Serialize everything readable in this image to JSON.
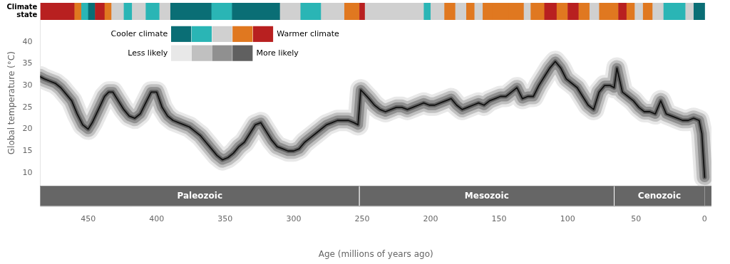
{
  "chart_data": {
    "type": "line",
    "xlabel": "Age (millions of years ago)",
    "ylabel": "Global temperature (°C)",
    "xlim": [
      485,
      -5
    ],
    "ylim": [
      7,
      45
    ],
    "xticks": [
      450,
      400,
      350,
      300,
      250,
      200,
      150,
      100,
      50,
      0
    ],
    "yticks": [
      10,
      15,
      20,
      25,
      30,
      35,
      40
    ],
    "grid": false,
    "color": "#111111",
    "x": [
      485,
      482,
      478,
      474,
      470,
      466,
      462,
      458,
      454,
      450,
      447,
      444,
      441,
      438,
      435,
      432,
      428,
      424,
      420,
      416,
      412,
      408,
      404,
      400,
      396,
      392,
      388,
      384,
      380,
      376,
      372,
      368,
      364,
      360,
      356,
      352,
      348,
      344,
      340,
      336,
      332,
      328,
      324,
      320,
      316,
      312,
      308,
      304,
      300,
      296,
      292,
      288,
      284,
      280,
      276,
      272,
      268,
      264,
      260,
      256,
      253,
      251,
      248,
      245,
      241,
      237,
      233,
      229,
      225,
      221,
      217,
      213,
      209,
      205,
      201,
      197,
      193,
      189,
      185,
      181,
      177,
      173,
      169,
      165,
      161,
      157,
      153,
      149,
      145,
      141,
      137,
      133,
      129,
      125,
      121,
      117,
      113,
      109,
      105,
      101,
      97,
      93,
      89,
      85,
      81,
      77,
      73,
      69,
      66,
      64,
      60,
      56,
      52,
      48,
      44,
      40,
      36,
      32,
      28,
      24,
      20,
      16,
      12,
      8,
      4,
      2,
      1,
      0
    ],
    "values": [
      32.0,
      31.5,
      31.0,
      30.5,
      29.5,
      28.0,
      26.5,
      23.5,
      21.0,
      20.0,
      21.5,
      23.5,
      25.5,
      27.5,
      28.5,
      28.5,
      26.5,
      24.5,
      23.0,
      22.5,
      23.5,
      26.0,
      28.5,
      28.5,
      25.0,
      23.0,
      22.0,
      21.5,
      21.0,
      20.5,
      19.5,
      18.5,
      17.0,
      15.5,
      14.0,
      13.0,
      13.5,
      14.5,
      16.0,
      17.0,
      19.0,
      21.0,
      21.5,
      19.5,
      17.5,
      16.0,
      15.5,
      15.0,
      15.0,
      15.5,
      17.0,
      18.0,
      19.0,
      20.0,
      21.0,
      21.5,
      22.0,
      22.0,
      22.0,
      21.5,
      21.0,
      29.0,
      28.0,
      27.0,
      25.5,
      24.5,
      24.0,
      24.5,
      25.0,
      25.0,
      24.5,
      25.0,
      25.5,
      26.0,
      25.5,
      25.5,
      26.0,
      26.5,
      27.0,
      25.5,
      24.5,
      25.0,
      25.5,
      26.0,
      25.5,
      26.5,
      27.0,
      27.5,
      27.5,
      28.5,
      29.5,
      27.0,
      27.5,
      27.5,
      30.0,
      32.0,
      34.0,
      35.5,
      34.0,
      31.5,
      30.5,
      29.5,
      27.5,
      25.5,
      24.5,
      28.5,
      30.0,
      30.0,
      29.5,
      34.0,
      28.5,
      27.5,
      26.5,
      25.0,
      24.0,
      24.0,
      23.5,
      26.5,
      23.5,
      23.0,
      22.5,
      22.0,
      22.0,
      22.5,
      22.0,
      19.0,
      14.0,
      9.0
    ],
    "climate_state": {
      "label": "Climate\nstate",
      "segments": [
        {
          "start": 485,
          "end": 460,
          "color": "#b82020"
        },
        {
          "start": 460,
          "end": 455,
          "color": "#e07820"
        },
        {
          "start": 455,
          "end": 450,
          "color": "#2ab5b5"
        },
        {
          "start": 450,
          "end": 445,
          "color": "#0a6e75"
        },
        {
          "start": 445,
          "end": 438,
          "color": "#b82020"
        },
        {
          "start": 438,
          "end": 433,
          "color": "#e07820"
        },
        {
          "start": 433,
          "end": 424,
          "color": "#d0d0d0"
        },
        {
          "start": 424,
          "end": 418,
          "color": "#2ab5b5"
        },
        {
          "start": 418,
          "end": 408,
          "color": "#d0d0d0"
        },
        {
          "start": 408,
          "end": 398,
          "color": "#2ab5b5"
        },
        {
          "start": 398,
          "end": 390,
          "color": "#d0d0d0"
        },
        {
          "start": 390,
          "end": 360,
          "color": "#0a6e75"
        },
        {
          "start": 360,
          "end": 345,
          "color": "#2ab5b5"
        },
        {
          "start": 345,
          "end": 310,
          "color": "#0a6e75"
        },
        {
          "start": 310,
          "end": 295,
          "color": "#d0d0d0"
        },
        {
          "start": 295,
          "end": 280,
          "color": "#2ab5b5"
        },
        {
          "start": 280,
          "end": 263,
          "color": "#d0d0d0"
        },
        {
          "start": 263,
          "end": 252,
          "color": "#e07820"
        },
        {
          "start": 252,
          "end": 248,
          "color": "#b82020"
        },
        {
          "start": 248,
          "end": 205,
          "color": "#d0d0d0"
        },
        {
          "start": 205,
          "end": 200,
          "color": "#2ab5b5"
        },
        {
          "start": 200,
          "end": 190,
          "color": "#d0d0d0"
        },
        {
          "start": 190,
          "end": 182,
          "color": "#e07820"
        },
        {
          "start": 182,
          "end": 174,
          "color": "#d0d0d0"
        },
        {
          "start": 174,
          "end": 168,
          "color": "#e07820"
        },
        {
          "start": 168,
          "end": 162,
          "color": "#d0d0d0"
        },
        {
          "start": 162,
          "end": 155,
          "color": "#e07820"
        },
        {
          "start": 155,
          "end": 143,
          "color": "#e07820"
        },
        {
          "start": 143,
          "end": 132,
          "color": "#e07820"
        },
        {
          "start": 132,
          "end": 127,
          "color": "#d0d0d0"
        },
        {
          "start": 127,
          "end": 117,
          "color": "#e07820"
        },
        {
          "start": 117,
          "end": 108,
          "color": "#b82020"
        },
        {
          "start": 108,
          "end": 100,
          "color": "#e07820"
        },
        {
          "start": 100,
          "end": 92,
          "color": "#b82020"
        },
        {
          "start": 92,
          "end": 84,
          "color": "#e07820"
        },
        {
          "start": 84,
          "end": 77,
          "color": "#d0d0d0"
        },
        {
          "start": 77,
          "end": 63,
          "color": "#e07820"
        },
        {
          "start": 63,
          "end": 57,
          "color": "#b82020"
        },
        {
          "start": 57,
          "end": 51,
          "color": "#e07820"
        },
        {
          "start": 51,
          "end": 45,
          "color": "#d0d0d0"
        },
        {
          "start": 45,
          "end": 38,
          "color": "#e07820"
        },
        {
          "start": 38,
          "end": 30,
          "color": "#d0d0d0"
        },
        {
          "start": 30,
          "end": 14,
          "color": "#2ab5b5"
        },
        {
          "start": 14,
          "end": 8,
          "color": "#d0d0d0"
        },
        {
          "start": 8,
          "end": 0,
          "color": "#0a6e75"
        }
      ]
    },
    "climate_legend": {
      "low_label": "Cooler climate",
      "high_label": "Warmer climate",
      "colors": [
        "#0a6e75",
        "#2ab5b5",
        "#d0d0d0",
        "#e07820",
        "#b82020"
      ]
    },
    "likelihood_legend": {
      "low_label": "Less likely",
      "high_label": "More likely",
      "colors": [
        "#e8e8e8",
        "#c0c0c0",
        "#909090",
        "#606060"
      ]
    },
    "eras": {
      "color": "#666666",
      "text_color": "#ffffff",
      "items": [
        {
          "name": "Paleozoic",
          "start": 485,
          "end": 252
        },
        {
          "name": "Mesozoic",
          "start": 252,
          "end": 66
        },
        {
          "name": "Cenozoic",
          "start": 66,
          "end": 0
        }
      ]
    }
  }
}
